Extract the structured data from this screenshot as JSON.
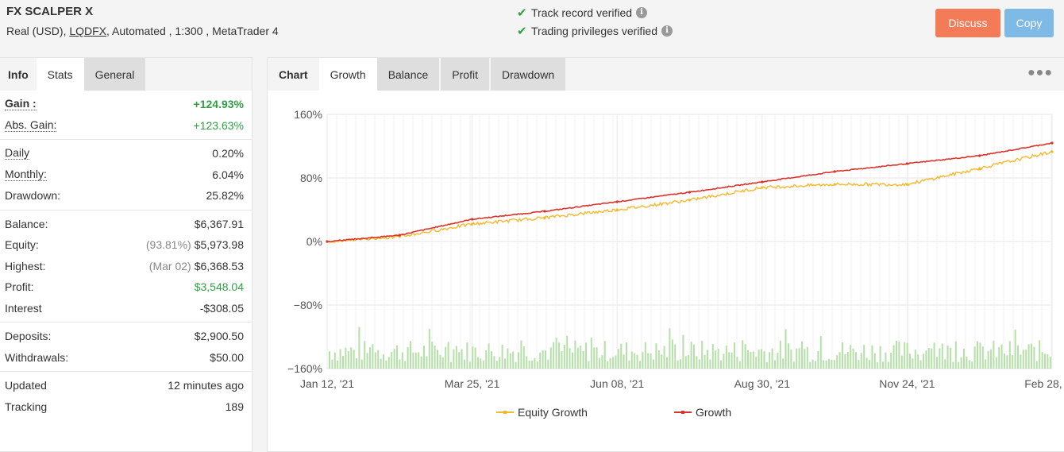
{
  "header": {
    "title": "FX SCALPER X",
    "subtitle_prefix": "Real (USD),",
    "broker": "LQDFX",
    "subtitle_suffix": ", Automated , 1:300 , MetaTrader 4",
    "verifications": [
      "Track record verified",
      "Trading privileges verified"
    ],
    "discuss_label": "Discuss",
    "copy_label": "Copy"
  },
  "left_tabs": [
    "Info",
    "Stats",
    "General"
  ],
  "stats": {
    "gain": {
      "label": "Gain :",
      "value": "+124.93%"
    },
    "abs_gain": {
      "label": "Abs. Gain:",
      "value": "+123.63%"
    },
    "daily": {
      "label": "Daily",
      "value": "0.20%"
    },
    "monthly": {
      "label": "Monthly:",
      "value": "6.04%"
    },
    "drawdown": {
      "label": "Drawdown:",
      "value": "25.82%"
    },
    "balance": {
      "label": "Balance:",
      "value": "$6,367.91"
    },
    "equity": {
      "label": "Equity:",
      "note": "(93.81%)",
      "value": "$5,973.98"
    },
    "highest": {
      "label": "Highest:",
      "note": "(Mar 02)",
      "value": "$6,368.53"
    },
    "profit": {
      "label": "Profit:",
      "value": "$3,548.04"
    },
    "interest": {
      "label": "Interest",
      "value": "-$308.05"
    },
    "deposits": {
      "label": "Deposits:",
      "value": "$2,900.50"
    },
    "withdrawals": {
      "label": "Withdrawals:",
      "value": "$50.00"
    },
    "updated": {
      "label": "Updated",
      "value": "12 minutes ago"
    },
    "tracking": {
      "label": "Tracking",
      "value": "189"
    }
  },
  "right_tabs": [
    "Chart",
    "Growth",
    "Balance",
    "Profit",
    "Drawdown"
  ],
  "more_icon": "more-dots-icon",
  "colors": {
    "equity": "#f5b82e",
    "growth": "#d9342b",
    "volume": "#b5e0a8",
    "gain": "#2ea043",
    "discuss": "#f47b58",
    "copy": "#7fb9e6"
  },
  "chart_data": {
    "type": "line",
    "ylim": [
      -160,
      160
    ],
    "y_ticks": [
      "160%",
      "80%",
      "0%",
      "−80%",
      "−160%"
    ],
    "x_ticks": [
      "Jan 12, '21",
      "Mar 25, '21",
      "Jun 08, '21",
      "Aug 30, '21",
      "Nov 24, '21",
      "Feb 28, '22"
    ],
    "x": [
      "Jan 12, '21",
      "Feb '21",
      "Mar 25, '21",
      "Apr '21",
      "Jun 08, '21",
      "Jul '21",
      "Aug 30, '21",
      "Oct '21",
      "Nov 24, '21",
      "Jan '22",
      "Feb 28, '22"
    ],
    "series": [
      {
        "name": "Equity Growth",
        "values": [
          0,
          6,
          22,
          30,
          40,
          52,
          68,
          72,
          72,
          92,
          113
        ]
      },
      {
        "name": "Growth",
        "values": [
          0,
          8,
          28,
          38,
          50,
          62,
          75,
          88,
          98,
          108,
          124
        ]
      }
    ],
    "volume_bars": true,
    "legend": "bottom",
    "grid": true
  }
}
